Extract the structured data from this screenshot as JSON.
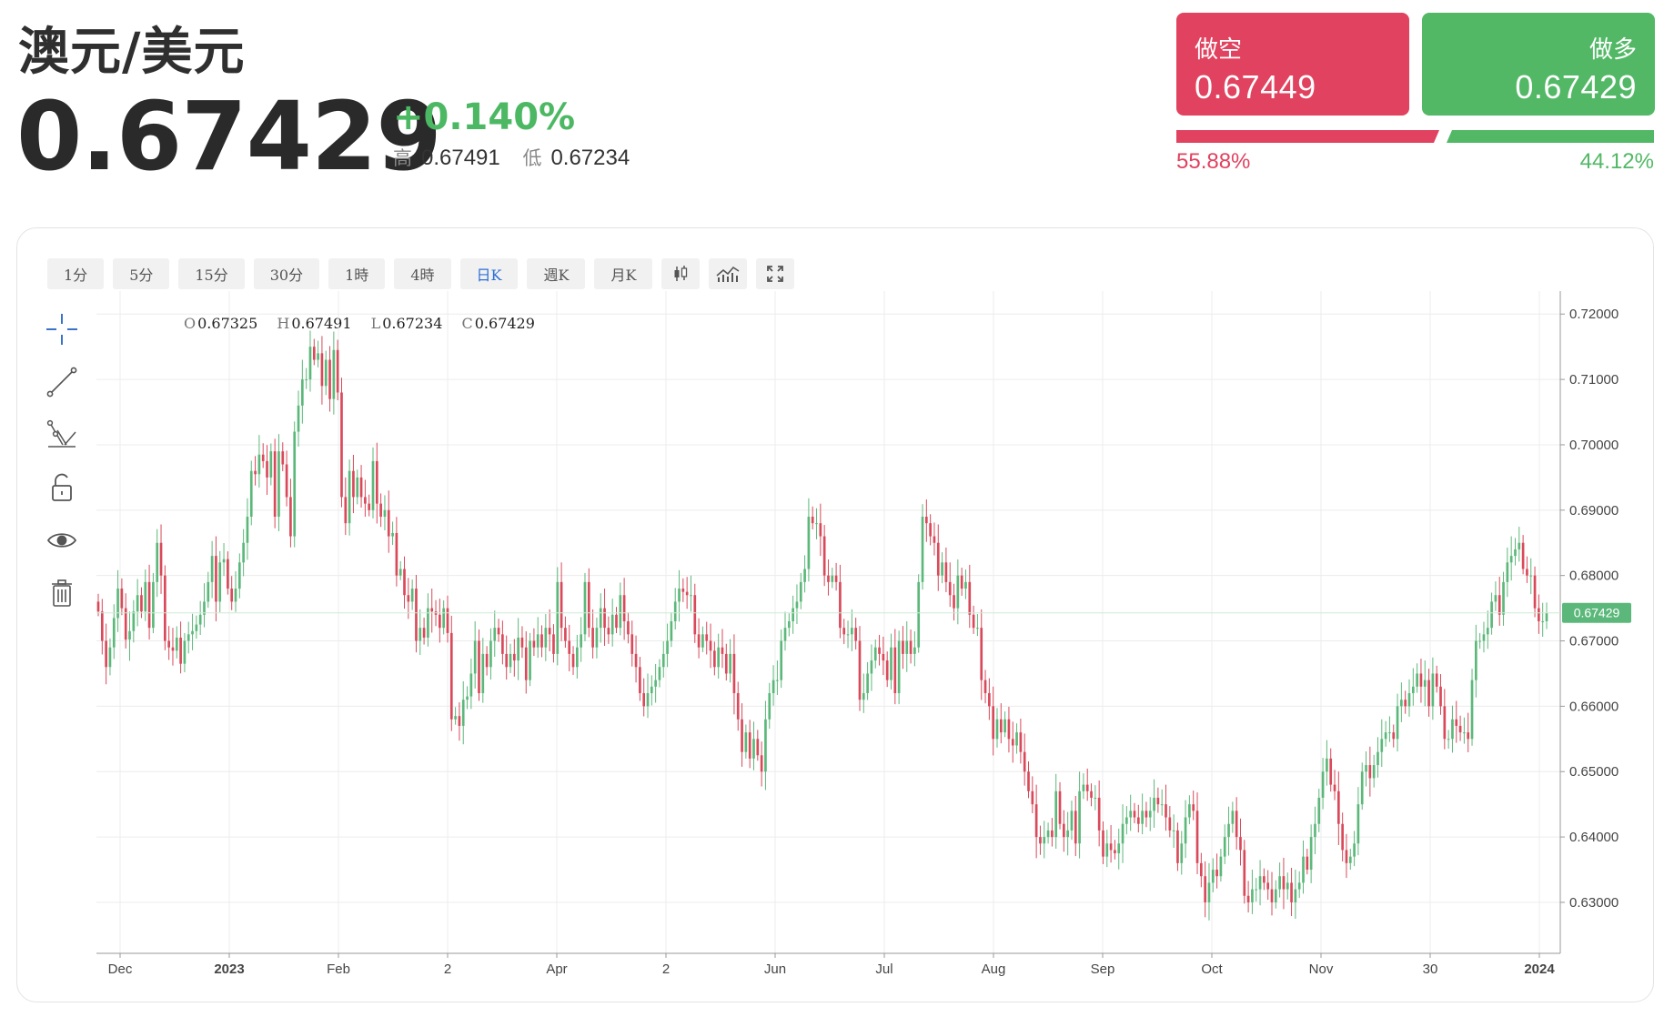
{
  "header": {
    "title": "澳元/美元",
    "price": "0.67429",
    "change": "+0.140%",
    "high_label": "高",
    "high": "0.67491",
    "low_label": "低",
    "low": "0.67234"
  },
  "trade": {
    "short_label": "做空",
    "short_price": "0.67449",
    "long_label": "做多",
    "long_price": "0.67429",
    "short_pct": "55.88%",
    "long_pct": "44.12%",
    "short_share": 0.5588,
    "long_share": 0.4412,
    "short_color": "#e0425f",
    "long_color": "#52b866"
  },
  "toolbar": {
    "intervals": [
      "1分",
      "5分",
      "15分",
      "30分",
      "1時",
      "4時",
      "日K",
      "週K",
      "月K"
    ],
    "active_interval": "日K",
    "icons": [
      "candlestick-icon",
      "indicators-icon",
      "fullscreen-icon"
    ]
  },
  "side_tools": [
    "crosshair-icon",
    "trendline-icon",
    "fib-icon",
    "lock-icon",
    "eye-icon",
    "trash-icon"
  ],
  "ohlc": {
    "o_label": "O",
    "o": "0.67325",
    "h_label": "H",
    "h": "0.67491",
    "l_label": "L",
    "l": "0.67234",
    "c_label": "C",
    "c": "0.67429"
  },
  "chart_data": {
    "type": "candlestick",
    "x_tick_labels": [
      "Dec",
      "2023",
      "Feb",
      "2",
      "Apr",
      "2",
      "Jun",
      "Jul",
      "Aug",
      "Sep",
      "Oct",
      "Nov",
      "30",
      "2024"
    ],
    "bold_x_ticks": [
      "2023",
      "2024"
    ],
    "y_tick_labels": [
      "0.72000",
      "0.71000",
      "0.70000",
      "0.69000",
      "0.68000",
      "0.67000",
      "0.66000",
      "0.65000",
      "0.64000",
      "0.63000"
    ],
    "y_ticks": [
      0.72,
      0.71,
      0.7,
      0.69,
      0.68,
      0.67,
      0.66,
      0.65,
      0.64,
      0.63
    ],
    "ylim": [
      0.6222,
      0.7224
    ],
    "last_price_label": "0.67429",
    "last_price": 0.67429,
    "grid": true,
    "up_color": "#5cb87a",
    "down_color": "#d9495a",
    "closes": [
      0.6745,
      0.67,
      0.666,
      0.669,
      0.6735,
      0.678,
      0.675,
      0.6702,
      0.6715,
      0.6745,
      0.677,
      0.6745,
      0.679,
      0.672,
      0.679,
      0.685,
      0.68,
      0.67,
      0.669,
      0.6685,
      0.6705,
      0.6665,
      0.67,
      0.671,
      0.6715,
      0.6725,
      0.674,
      0.676,
      0.679,
      0.683,
      0.676,
      0.682,
      0.6825,
      0.678,
      0.676,
      0.678,
      0.682,
      0.685,
      0.689,
      0.696,
      0.6955,
      0.6985,
      0.6975,
      0.695,
      0.699,
      0.689,
      0.699,
      0.697,
      0.692,
      0.686,
      0.702,
      0.706,
      0.71,
      0.71,
      0.715,
      0.713,
      0.714,
      0.709,
      0.713,
      0.707,
      0.7145,
      0.708,
      0.692,
      0.688,
      0.696,
      0.692,
      0.695,
      0.692,
      0.691,
      0.69,
      0.6975,
      0.691,
      0.689,
      0.69,
      0.686,
      0.6865,
      0.68,
      0.681,
      0.677,
      0.676,
      0.678,
      0.67,
      0.672,
      0.6705,
      0.675,
      0.6745,
      0.674,
      0.672,
      0.675,
      0.6712,
      0.658,
      0.6585,
      0.657,
      0.661,
      0.6615,
      0.665,
      0.67,
      0.662,
      0.668,
      0.666,
      0.67,
      0.672,
      0.671,
      0.668,
      0.666,
      0.668,
      0.667,
      0.6705,
      0.669,
      0.664,
      0.67,
      0.669,
      0.671,
      0.669,
      0.672,
      0.671,
      0.668,
      0.679,
      0.672,
      0.67,
      0.668,
      0.666,
      0.669,
      0.671,
      0.679,
      0.672,
      0.669,
      0.672,
      0.675,
      0.672,
      0.671,
      0.674,
      0.672,
      0.677,
      0.673,
      0.671,
      0.668,
      0.666,
      0.662,
      0.66,
      0.662,
      0.663,
      0.664,
      0.666,
      0.668,
      0.67,
      0.673,
      0.676,
      0.678,
      0.6775,
      0.677,
      0.677,
      0.671,
      0.669,
      0.671,
      0.67,
      0.6685,
      0.666,
      0.669,
      0.668,
      0.665,
      0.668,
      0.662,
      0.658,
      0.653,
      0.656,
      0.652,
      0.655,
      0.6525,
      0.65,
      0.658,
      0.662,
      0.664,
      0.664,
      0.67,
      0.672,
      0.673,
      0.675,
      0.676,
      0.679,
      0.681,
      0.689,
      0.688,
      0.688,
      0.686,
      0.68,
      0.679,
      0.68,
      0.679,
      0.672,
      0.671,
      0.671,
      0.672,
      0.67,
      0.661,
      0.662,
      0.665,
      0.667,
      0.669,
      0.668,
      0.667,
      0.664,
      0.669,
      0.662,
      0.67,
      0.668,
      0.67,
      0.668,
      0.669,
      0.679,
      0.689,
      0.688,
      0.686,
      0.685,
      0.68,
      0.682,
      0.679,
      0.677,
      0.675,
      0.68,
      0.678,
      0.679,
      0.674,
      0.672,
      0.672,
      0.664,
      0.662,
      0.66,
      0.655,
      0.658,
      0.656,
      0.658,
      0.655,
      0.654,
      0.656,
      0.653,
      0.65,
      0.647,
      0.645,
      0.64,
      0.639,
      0.64,
      0.641,
      0.64,
      0.647,
      0.642,
      0.64,
      0.641,
      0.644,
      0.639,
      0.647,
      0.648,
      0.647,
      0.646,
      0.646,
      0.641,
      0.637,
      0.639,
      0.638,
      0.6375,
      0.639,
      0.642,
      0.643,
      0.644,
      0.643,
      0.642,
      0.644,
      0.643,
      0.644,
      0.646,
      0.645,
      0.645,
      0.643,
      0.641,
      0.641,
      0.636,
      0.639,
      0.643,
      0.645,
      0.644,
      0.636,
      0.634,
      0.63,
      0.633,
      0.635,
      0.634,
      0.637,
      0.64,
      0.642,
      0.644,
      0.64,
      0.638,
      0.631,
      0.63,
      0.632,
      0.632,
      0.634,
      0.633,
      0.632,
      0.63,
      0.632,
      0.634,
      0.632,
      0.633,
      0.63,
      0.632,
      0.633,
      0.637,
      0.635,
      0.64,
      0.642,
      0.646,
      0.65,
      0.652,
      0.648,
      0.647,
      0.642,
      0.638,
      0.636,
      0.637,
      0.639,
      0.645,
      0.65,
      0.651,
      0.649,
      0.651,
      0.653,
      0.655,
      0.656,
      0.656,
      0.655,
      0.66,
      0.661,
      0.66,
      0.662,
      0.663,
      0.665,
      0.663,
      0.664,
      0.66,
      0.665,
      0.663,
      0.66,
      0.655,
      0.655,
      0.658,
      0.657,
      0.656,
      0.656,
      0.655,
      0.664,
      0.67,
      0.67,
      0.671,
      0.672,
      0.676,
      0.677,
      0.674,
      0.679,
      0.682,
      0.683,
      0.684,
      0.685,
      0.681,
      0.68,
      0.68,
      0.675,
      0.673,
      0.673,
      0.6743
    ]
  }
}
